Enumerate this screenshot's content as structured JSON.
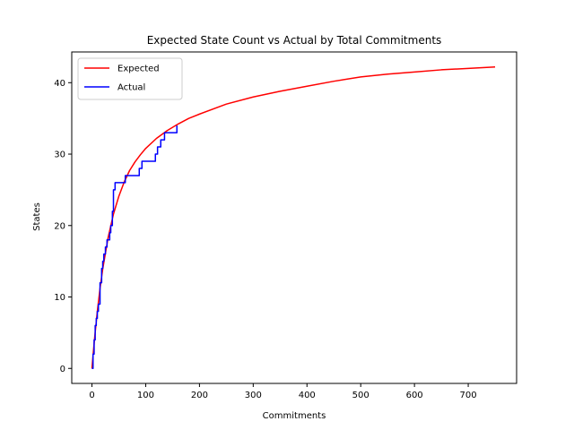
{
  "chart_data": {
    "type": "line",
    "title": "Expected State Count vs Actual by Total Commitments",
    "xlabel": "Commitments",
    "ylabel": "States",
    "xlim": [
      -37.6,
      790
    ],
    "ylim": [
      -2.1,
      44.3
    ],
    "xticks": [
      0,
      100,
      200,
      300,
      400,
      500,
      600,
      700
    ],
    "yticks": [
      0,
      10,
      20,
      30,
      40
    ],
    "grid": false,
    "legend_position": "upper-left",
    "colors": {
      "expected": "#ff0000",
      "actual": "#0000ff"
    },
    "series": [
      {
        "name": "Expected",
        "x": [
          0,
          2,
          5,
          10,
          15,
          20,
          30,
          40,
          50,
          60,
          70,
          80,
          90,
          100,
          120,
          140,
          160,
          180,
          200,
          250,
          300,
          350,
          400,
          450,
          500,
          550,
          600,
          650,
          700,
          750
        ],
        "y": [
          0,
          1.8,
          4.3,
          8.0,
          11.2,
          13.9,
          18.3,
          21.6,
          24.1,
          26.1,
          27.7,
          28.9,
          29.9,
          30.8,
          32.2,
          33.3,
          34.2,
          35.0,
          35.6,
          37.0,
          38.0,
          38.8,
          39.5,
          40.2,
          40.8,
          41.2,
          41.5,
          41.8,
          42.0,
          42.2
        ]
      },
      {
        "name": "Actual",
        "step": true,
        "x": [
          0,
          2,
          4,
          6,
          8,
          10,
          12,
          15,
          18,
          20,
          22,
          25,
          28,
          30,
          33,
          35,
          38,
          40,
          43,
          58,
          62,
          70,
          88,
          93,
          98,
          118,
          122,
          125,
          128,
          135,
          140,
          155,
          158
        ],
        "y": [
          0,
          2,
          4,
          6,
          7,
          8,
          9,
          12,
          14,
          15,
          16,
          17,
          18,
          18,
          19,
          20,
          22,
          25,
          26,
          26,
          27,
          27,
          28,
          29,
          29,
          30,
          31,
          31,
          32,
          33,
          33,
          33,
          34
        ]
      }
    ]
  }
}
